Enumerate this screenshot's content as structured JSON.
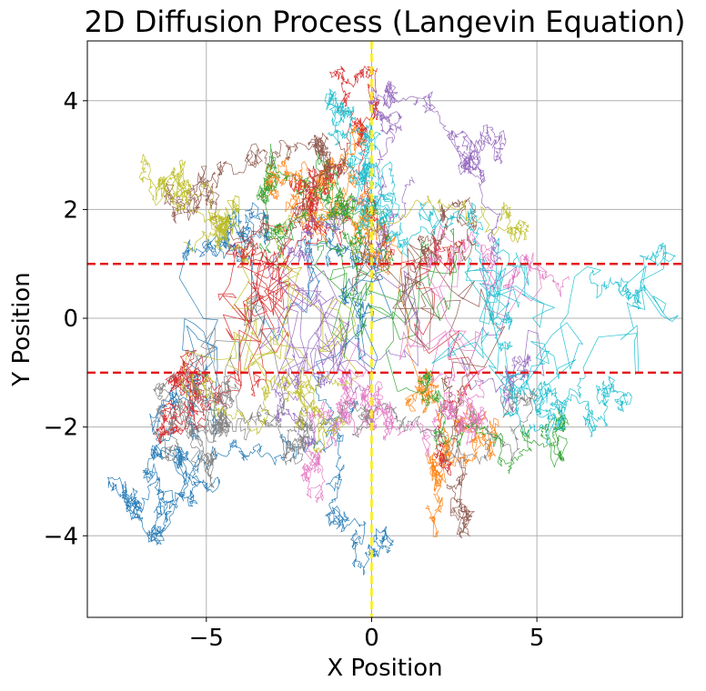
{
  "chart_data": {
    "type": "line",
    "title": "2D Diffusion Process (Langevin Equation)",
    "xlabel": "X Position",
    "ylabel": "Y Position",
    "xlim": [
      -8.6,
      9.4
    ],
    "ylim": [
      -5.5,
      5.1
    ],
    "xticks": [
      -5,
      0,
      5
    ],
    "yticks": [
      -4,
      -2,
      0,
      2,
      4
    ],
    "xtick_labels": [
      "−5",
      "0",
      "5"
    ],
    "ytick_labels": [
      "−4",
      "−2",
      "0",
      "2",
      "4"
    ],
    "grid": true,
    "reference_lines": [
      {
        "orientation": "horizontal",
        "value": 1,
        "color": "#e41a1c",
        "style": "dashed"
      },
      {
        "orientation": "horizontal",
        "value": -1,
        "color": "#e41a1c",
        "style": "dashed"
      },
      {
        "orientation": "vertical",
        "value": 0,
        "color": "#ffee00",
        "style": "dashed"
      }
    ],
    "trajectory_colors": [
      "#1f77b4",
      "#ff7f0e",
      "#2ca02c",
      "#d62728",
      "#9467bd",
      "#8c564b",
      "#e377c2",
      "#7f7f7f",
      "#bcbd22",
      "#17becf"
    ],
    "trajectories": [
      {
        "color_index": 0,
        "seed": 11,
        "start": [
          -0.4,
          -1.6
        ],
        "points": [
          [
            -7.2,
            -3.2
          ],
          [
            -6.6,
            -2.4
          ],
          [
            -5.8,
            -1.6
          ],
          [
            -3.2,
            1.6
          ],
          [
            0.0,
            0.0
          ],
          [
            -0.3,
            -4.6
          ]
        ]
      },
      {
        "color_index": 1,
        "seed": 23,
        "start": [
          -1.4,
          1.6
        ],
        "points": [
          [
            -3.0,
            2.6
          ],
          [
            -1.0,
            2.2
          ],
          [
            0.5,
            1.0
          ],
          [
            2.5,
            -2.3
          ],
          [
            1.8,
            -2.8
          ]
        ]
      },
      {
        "color_index": 2,
        "seed": 37,
        "start": [
          0.6,
          1.4
        ],
        "points": [
          [
            -3.0,
            3.1
          ],
          [
            -0.5,
            2.0
          ],
          [
            1.5,
            -1.4
          ],
          [
            5.4,
            -2.4
          ]
        ]
      },
      {
        "color_index": 3,
        "seed": 41,
        "start": [
          -0.8,
          1.8
        ],
        "points": [
          [
            -6.4,
            -2.1
          ],
          [
            -5.6,
            -1.0
          ],
          [
            -1.6,
            1.7
          ],
          [
            0.2,
            4.4
          ],
          [
            2.4,
            -1.6
          ]
        ]
      },
      {
        "color_index": 4,
        "seed": 53,
        "start": [
          1.2,
          2.6
        ],
        "points": [
          [
            -1.6,
            -1.8
          ],
          [
            0.6,
            3.5
          ],
          [
            3.7,
            3.2
          ],
          [
            4.6,
            -1.0
          ]
        ]
      },
      {
        "color_index": 5,
        "seed": 61,
        "start": [
          -1.0,
          3.2
        ],
        "points": [
          [
            -5.4,
            2.0
          ],
          [
            -1.4,
            3.3
          ],
          [
            2.6,
            -3.9
          ],
          [
            2.2,
            1.8
          ]
        ]
      },
      {
        "color_index": 6,
        "seed": 71,
        "start": [
          -0.2,
          -1.8
        ],
        "points": [
          [
            -2.0,
            -2.9
          ],
          [
            0.3,
            -1.6
          ],
          [
            3.3,
            -2.0
          ],
          [
            4.4,
            0.4
          ]
        ]
      },
      {
        "color_index": 7,
        "seed": 83,
        "start": [
          -4.4,
          -1.8
        ],
        "points": [
          [
            -6.0,
            -1.0
          ],
          [
            -4.8,
            -2.0
          ],
          [
            -2.0,
            -2.3
          ],
          [
            4.8,
            -1.5
          ]
        ]
      },
      {
        "color_index": 8,
        "seed": 97,
        "start": [
          -5.7,
          1.4
        ],
        "points": [
          [
            -5.6,
            2.2
          ],
          [
            -4.6,
            1.6
          ],
          [
            -1.0,
            -2.0
          ],
          [
            4.6,
            1.8
          ]
        ]
      },
      {
        "color_index": 9,
        "seed": 103,
        "start": [
          0.4,
          1.8
        ],
        "points": [
          [
            -1.2,
            4.0
          ],
          [
            0.4,
            2.2
          ],
          [
            4.0,
            -0.6
          ],
          [
            8.2,
            1.0
          ],
          [
            7.2,
            -1.4
          ]
        ]
      }
    ]
  }
}
